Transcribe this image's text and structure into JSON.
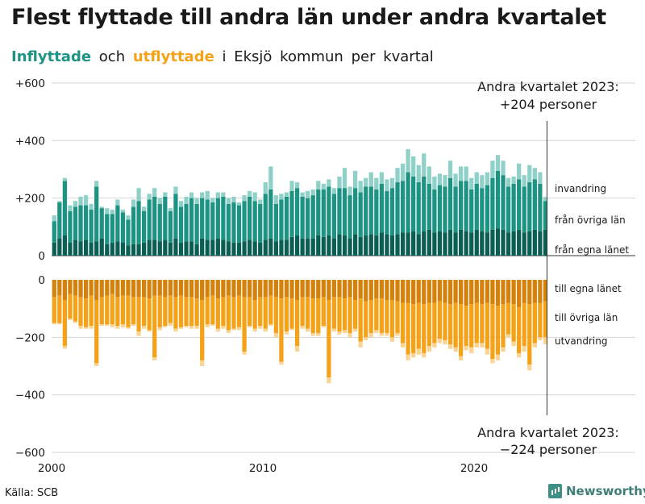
{
  "title": "Flest flyttade till andra län under andra kvartalet",
  "subtitle": {
    "inflow": "Inflyttade",
    "and": "och",
    "outflow": "utflyttade",
    "rest": "i Eksjö kommun per kvartal"
  },
  "source": "Källa: SCB",
  "brand": "Newsworthy",
  "colors": {
    "in_egna": "#0b5e54",
    "in_ovriga": "#1d9383",
    "in_invandring": "#8fd1c8",
    "out_egna": "#d4820c",
    "out_ovriga": "#f5a218",
    "out_utvandring": "#fad494",
    "grid": "#d6d6d6"
  },
  "chart_data": {
    "type": "bar",
    "stacked": true,
    "x_start": "2000 Q1",
    "x_end": "2023 Q2",
    "x_ticks": [
      "2000",
      "2010",
      "2020"
    ],
    "y_ticks_top": [
      "+600",
      "+400",
      "+200",
      "0"
    ],
    "y_ticks_bottom": [
      "0",
      "−200",
      "−400",
      "−600"
    ],
    "ylim_top": [
      0,
      600
    ],
    "ylim_bottom": [
      -600,
      0
    ],
    "grid": true,
    "inflow_labels": [
      "invandring",
      "från övriga län",
      "från egna länet"
    ],
    "outflow_labels": [
      "till egna länet",
      "till övriga län",
      "utvandring"
    ],
    "annotation_top": [
      "Andra kvartalet 2023:",
      "+204 personer"
    ],
    "annotation_bottom": [
      "Andra kvartalet 2023:",
      "−224 personer"
    ],
    "inflow": {
      "egna": [
        45,
        60,
        70,
        45,
        55,
        50,
        55,
        45,
        50,
        60,
        40,
        45,
        50,
        45,
        35,
        40,
        40,
        45,
        55,
        55,
        50,
        55,
        45,
        60,
        45,
        50,
        50,
        40,
        60,
        55,
        55,
        60,
        55,
        50,
        45,
        45,
        50,
        55,
        50,
        45,
        55,
        60,
        50,
        55,
        55,
        65,
        70,
        60,
        60,
        60,
        70,
        65,
        70,
        60,
        75,
        70,
        60,
        75,
        65,
        70,
        75,
        70,
        80,
        75,
        70,
        75,
        80,
        80,
        85,
        75,
        85,
        90,
        80,
        85,
        80,
        90,
        80,
        90,
        85,
        80,
        90,
        85,
        80,
        90,
        95,
        90,
        80,
        85,
        90,
        80,
        85,
        90,
        85,
        90
      ],
      "ovriga": [
        75,
        125,
        190,
        110,
        115,
        125,
        120,
        115,
        190,
        105,
        105,
        100,
        125,
        105,
        90,
        130,
        150,
        110,
        140,
        150,
        130,
        150,
        110,
        155,
        125,
        130,
        150,
        140,
        140,
        140,
        130,
        140,
        150,
        130,
        140,
        130,
        140,
        150,
        140,
        135,
        160,
        170,
        130,
        140,
        150,
        160,
        165,
        145,
        140,
        150,
        160,
        165,
        170,
        155,
        160,
        165,
        150,
        160,
        155,
        170,
        165,
        160,
        170,
        150,
        165,
        180,
        180,
        210,
        190,
        180,
        190,
        160,
        150,
        160,
        160,
        180,
        160,
        170,
        175,
        150,
        160,
        150,
        165,
        180,
        200,
        190,
        160,
        165,
        175,
        160,
        170,
        175,
        165,
        100
      ],
      "invandring": [
        20,
        5,
        10,
        20,
        20,
        30,
        35,
        20,
        20,
        5,
        20,
        15,
        20,
        10,
        15,
        25,
        45,
        15,
        20,
        30,
        20,
        15,
        10,
        25,
        20,
        25,
        20,
        20,
        20,
        30,
        15,
        20,
        15,
        20,
        20,
        10,
        20,
        20,
        30,
        15,
        40,
        80,
        30,
        20,
        15,
        35,
        20,
        15,
        25,
        20,
        30,
        20,
        25,
        20,
        40,
        70,
        30,
        60,
        40,
        30,
        50,
        40,
        40,
        40,
        35,
        50,
        60,
        80,
        70,
        60,
        80,
        60,
        45,
        40,
        40,
        60,
        45,
        50,
        50,
        40,
        40,
        45,
        45,
        60,
        55,
        50,
        30,
        25,
        55,
        40,
        60,
        40,
        40,
        14
      ]
    },
    "outflow": {
      "egna": [
        60,
        55,
        70,
        50,
        55,
        60,
        65,
        55,
        70,
        60,
        55,
        50,
        60,
        55,
        55,
        60,
        60,
        60,
        65,
        55,
        55,
        60,
        55,
        60,
        55,
        60,
        60,
        65,
        70,
        60,
        55,
        65,
        60,
        55,
        60,
        55,
        60,
        60,
        70,
        60,
        60,
        55,
        60,
        65,
        60,
        65,
        70,
        60,
        60,
        65,
        65,
        60,
        70,
        60,
        60,
        65,
        60,
        70,
        65,
        75,
        70,
        65,
        65,
        70,
        70,
        75,
        80,
        80,
        85,
        80,
        85,
        80,
        80,
        75,
        80,
        85,
        80,
        85,
        90,
        85,
        80,
        85,
        80,
        85,
        90,
        85,
        80,
        85,
        95,
        80,
        85,
        80,
        80,
        75
      ],
      "ovriga": [
        90,
        95,
        160,
        85,
        90,
        100,
        100,
        105,
        220,
        95,
        100,
        105,
        100,
        100,
        110,
        95,
        120,
        100,
        110,
        215,
        110,
        100,
        95,
        110,
        110,
        100,
        100,
        95,
        210,
        95,
        100,
        105,
        100,
        120,
        110,
        110,
        190,
        100,
        100,
        100,
        110,
        100,
        125,
        220,
        120,
        105,
        160,
        100,
        110,
        120,
        120,
        100,
        270,
        110,
        120,
        110,
        125,
        100,
        150,
        125,
        115,
        110,
        120,
        115,
        130,
        110,
        140,
        180,
        170,
        160,
        170,
        150,
        140,
        130,
        130,
        140,
        155,
        180,
        140,
        150,
        140,
        135,
        160,
        190,
        170,
        150,
        110,
        130,
        160,
        150,
        210,
        140,
        120,
        125
      ],
      "utvandring": [
        5,
        5,
        10,
        5,
        5,
        10,
        5,
        10,
        10,
        5,
        5,
        10,
        10,
        10,
        5,
        5,
        15,
        10,
        5,
        10,
        10,
        5,
        10,
        10,
        5,
        5,
        10,
        10,
        20,
        10,
        5,
        10,
        10,
        10,
        5,
        10,
        10,
        5,
        10,
        10,
        10,
        5,
        15,
        10,
        10,
        5,
        20,
        10,
        10,
        10,
        10,
        5,
        20,
        10,
        10,
        10,
        15,
        10,
        20,
        10,
        15,
        10,
        10,
        10,
        15,
        10,
        15,
        20,
        15,
        20,
        15,
        20,
        15,
        15,
        15,
        15,
        15,
        15,
        15,
        20,
        15,
        15,
        20,
        15,
        20,
        15,
        10,
        15,
        15,
        20,
        20,
        15,
        10,
        24
      ]
    }
  }
}
